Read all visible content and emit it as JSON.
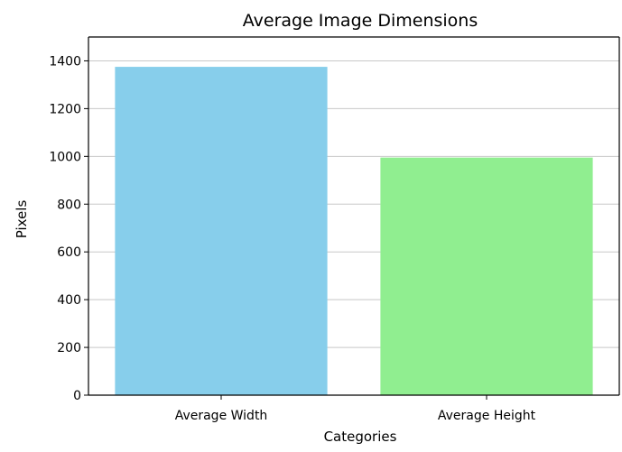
{
  "chart_data": {
    "type": "bar",
    "title": "Average Image Dimensions",
    "xlabel": "Categories",
    "ylabel": "Pixels",
    "categories": [
      "Average Width",
      "Average Height"
    ],
    "values": [
      1375,
      995
    ],
    "bar_colors": [
      "#87CEEB",
      "#90EE90"
    ],
    "ylim": [
      0,
      1500
    ],
    "yticks": [
      0,
      200,
      400,
      600,
      800,
      1000,
      1200,
      1400
    ],
    "grid": "y",
    "legend": "none"
  }
}
